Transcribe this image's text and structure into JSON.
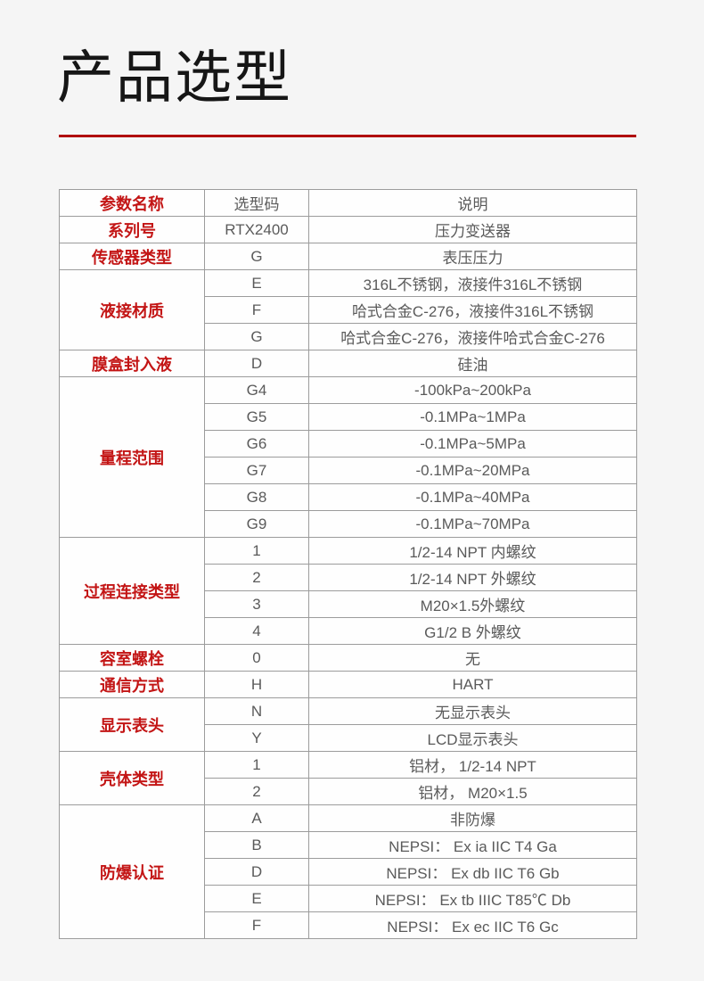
{
  "page": {
    "title": "产品选型",
    "background_color": "#f5f5f5",
    "accent_red": "#c31515",
    "rule_color": "#b00c0c"
  },
  "table": {
    "headers": [
      "参数名称",
      "选型码",
      "说明"
    ],
    "groups": [
      {
        "param": "系列号",
        "rows": [
          {
            "code": "RTX2400",
            "desc": "压力变送器"
          }
        ]
      },
      {
        "param": "传感器类型",
        "rows": [
          {
            "code": "G",
            "desc": "表压压力"
          }
        ]
      },
      {
        "param": "液接材质",
        "rows": [
          {
            "code": "E",
            "desc": "316L不锈钢，液接件316L不锈钢"
          },
          {
            "code": "F",
            "desc": "哈式合金C-276，液接件316L不锈钢"
          },
          {
            "code": "G",
            "desc": "哈式合金C-276，液接件哈式合金C-276"
          }
        ]
      },
      {
        "param": "膜盒封入液",
        "rows": [
          {
            "code": "D",
            "desc": "硅油"
          }
        ]
      },
      {
        "param": "量程范围",
        "rows": [
          {
            "code": "G4",
            "desc": "-100kPa~200kPa"
          },
          {
            "code": "G5",
            "desc": "-0.1MPa~1MPa"
          },
          {
            "code": "G6",
            "desc": "-0.1MPa~5MPa"
          },
          {
            "code": "G7",
            "desc": "-0.1MPa~20MPa"
          },
          {
            "code": "G8",
            "desc": "-0.1MPa~40MPa"
          },
          {
            "code": "G9",
            "desc": "-0.1MPa~70MPa"
          }
        ]
      },
      {
        "param": "过程连接类型",
        "rows": [
          {
            "code": "1",
            "desc": "1/2-14 NPT 内螺纹"
          },
          {
            "code": "2",
            "desc": "1/2-14 NPT 外螺纹"
          },
          {
            "code": "3",
            "desc": "M20×1.5外螺纹"
          },
          {
            "code": "4",
            "desc": "G1/2 B 外螺纹"
          }
        ]
      },
      {
        "param": "容室螺栓",
        "rows": [
          {
            "code": "0",
            "desc": "无"
          }
        ]
      },
      {
        "param": "通信方式",
        "rows": [
          {
            "code": "H",
            "desc": "HART"
          }
        ]
      },
      {
        "param": "显示表头",
        "rows": [
          {
            "code": "N",
            "desc": "无显示表头"
          },
          {
            "code": "Y",
            "desc": "LCD显示表头"
          }
        ]
      },
      {
        "param": "壳体类型",
        "rows": [
          {
            "code": "1",
            "desc": "铝材， 1/2-14 NPT"
          },
          {
            "code": "2",
            "desc": "铝材， M20×1.5"
          }
        ]
      },
      {
        "param": "防爆认证",
        "rows": [
          {
            "code": "A",
            "desc": "非防爆"
          },
          {
            "code": "B",
            "desc": "NEPSI： Ex ia IIC T4 Ga"
          },
          {
            "code": "D",
            "desc": "NEPSI： Ex db IIC T6 Gb"
          },
          {
            "code": "E",
            "desc": "NEPSI： Ex tb IIIC T85℃ Db"
          },
          {
            "code": "F",
            "desc": "NEPSI： Ex ec IIC T6 Gc"
          }
        ]
      }
    ]
  }
}
